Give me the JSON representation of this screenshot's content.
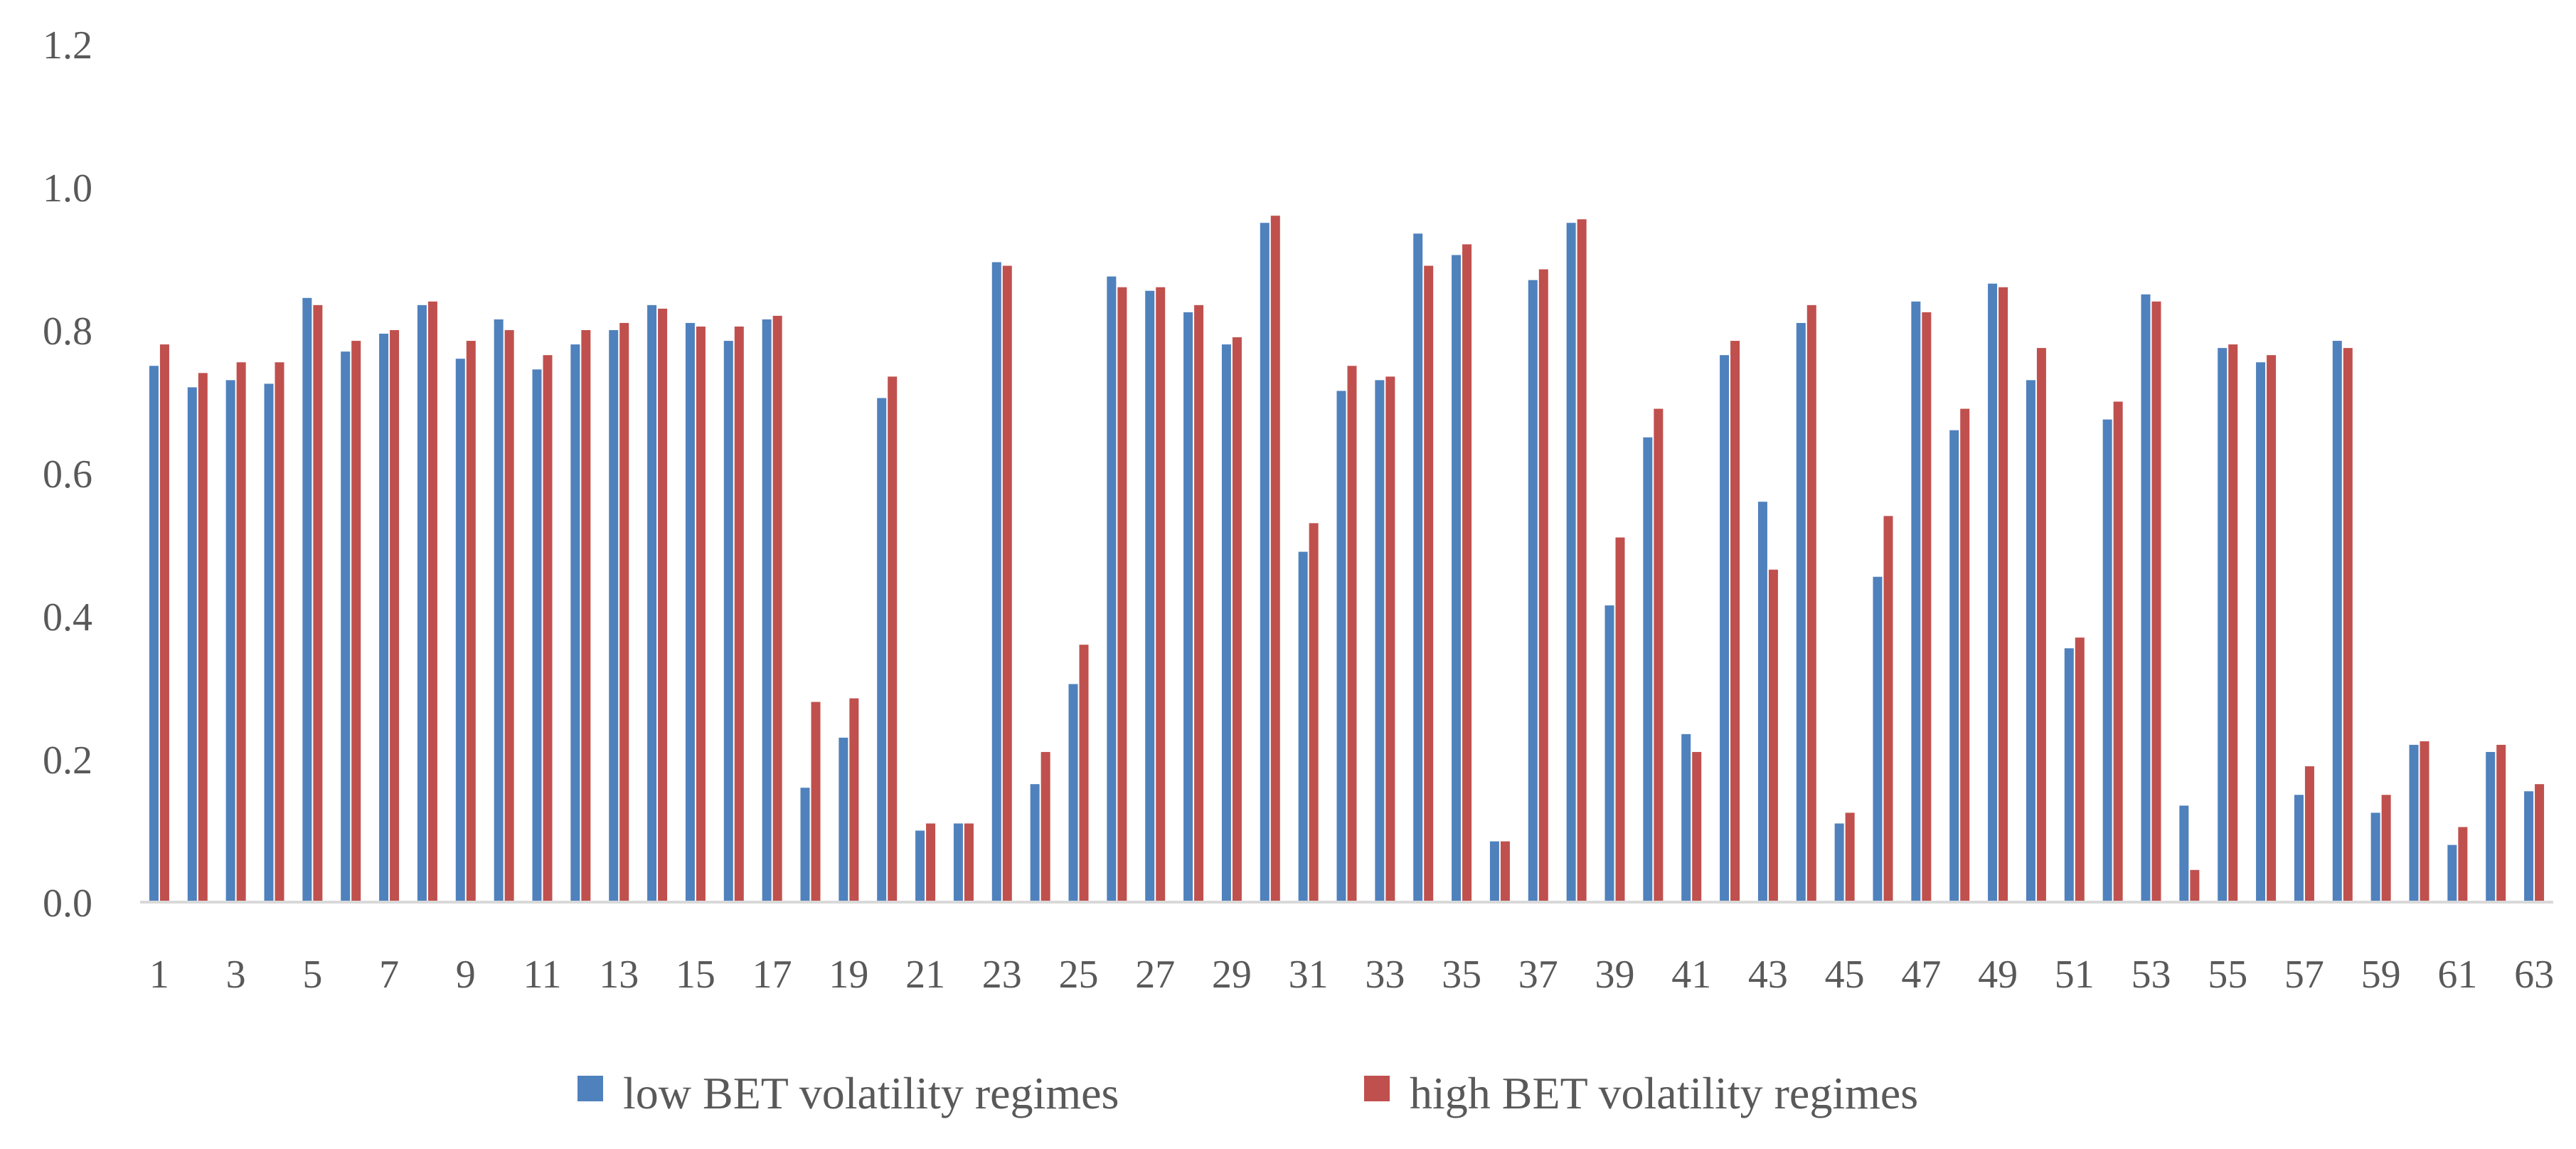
{
  "chart_data": {
    "type": "bar",
    "title": "",
    "xlabel": "",
    "ylabel": "",
    "ylim": [
      0,
      1.2
    ],
    "yticks": [
      "0.0",
      "0.2",
      "0.4",
      "0.6",
      "0.8",
      "1.0",
      "1.2"
    ],
    "grid": false,
    "legend_position": "bottom",
    "categories": [
      "1",
      "2",
      "3",
      "4",
      "5",
      "6",
      "7",
      "8",
      "9",
      "10",
      "11",
      "12",
      "13",
      "14",
      "15",
      "16",
      "17",
      "18",
      "19",
      "20",
      "21",
      "22",
      "23",
      "24",
      "25",
      "26",
      "27",
      "28",
      "29",
      "30",
      "31",
      "32",
      "33",
      "34",
      "35",
      "36",
      "37",
      "38",
      "39",
      "40",
      "41",
      "42",
      "43",
      "44",
      "45",
      "46",
      "47",
      "48",
      "49",
      "50",
      "51",
      "52",
      "53",
      "54",
      "55",
      "56",
      "57",
      "58",
      "59",
      "60",
      "61",
      "62",
      "63"
    ],
    "xtick_labels": [
      "1",
      "",
      "3",
      "",
      "5",
      "",
      "7",
      "",
      "9",
      "",
      "11",
      "",
      "13",
      "",
      "15",
      "",
      "17",
      "",
      "19",
      "",
      "21",
      "",
      "23",
      "",
      "25",
      "",
      "27",
      "",
      "29",
      "",
      "31",
      "",
      "33",
      "",
      "35",
      "",
      "37",
      "",
      "39",
      "",
      "41",
      "",
      "43",
      "",
      "45",
      "",
      "47",
      "",
      "49",
      "",
      "51",
      "",
      "53",
      "",
      "55",
      "",
      "57",
      "",
      "59",
      "",
      "61",
      "",
      "63"
    ],
    "series": [
      {
        "name": "low BET volatility regimes",
        "color": "#4F81BD",
        "values": [
          0.75,
          0.72,
          0.73,
          0.725,
          0.845,
          0.77,
          0.795,
          0.835,
          0.76,
          0.815,
          0.745,
          0.78,
          0.8,
          0.835,
          0.81,
          0.785,
          0.815,
          0.16,
          0.23,
          0.705,
          0.1,
          0.11,
          0.895,
          0.165,
          0.305,
          0.875,
          0.855,
          0.825,
          0.78,
          0.95,
          0.49,
          0.715,
          0.73,
          0.935,
          0.905,
          0.085,
          0.87,
          0.95,
          0.415,
          0.65,
          0.235,
          0.765,
          0.56,
          0.81,
          0.11,
          0.455,
          0.84,
          0.66,
          0.865,
          0.73,
          0.355,
          0.675,
          0.85,
          0.135,
          0.775,
          0.755,
          0.15,
          0.785,
          0.125,
          0.22,
          0.08,
          0.21,
          0.155
        ]
      },
      {
        "name": "high BET volatility regimes",
        "color": "#C0504D",
        "values": [
          0.78,
          0.74,
          0.755,
          0.755,
          0.835,
          0.785,
          0.8,
          0.84,
          0.785,
          0.8,
          0.765,
          0.8,
          0.81,
          0.83,
          0.805,
          0.805,
          0.82,
          0.28,
          0.285,
          0.735,
          0.11,
          0.11,
          0.89,
          0.21,
          0.36,
          0.86,
          0.86,
          0.835,
          0.79,
          0.96,
          0.53,
          0.75,
          0.735,
          0.89,
          0.92,
          0.085,
          0.885,
          0.955,
          0.51,
          0.69,
          0.21,
          0.785,
          0.465,
          0.835,
          0.125,
          0.54,
          0.825,
          0.69,
          0.86,
          0.775,
          0.37,
          0.7,
          0.84,
          0.045,
          0.78,
          0.765,
          0.19,
          0.775,
          0.15,
          0.225,
          0.105,
          0.22,
          0.165
        ]
      }
    ]
  }
}
